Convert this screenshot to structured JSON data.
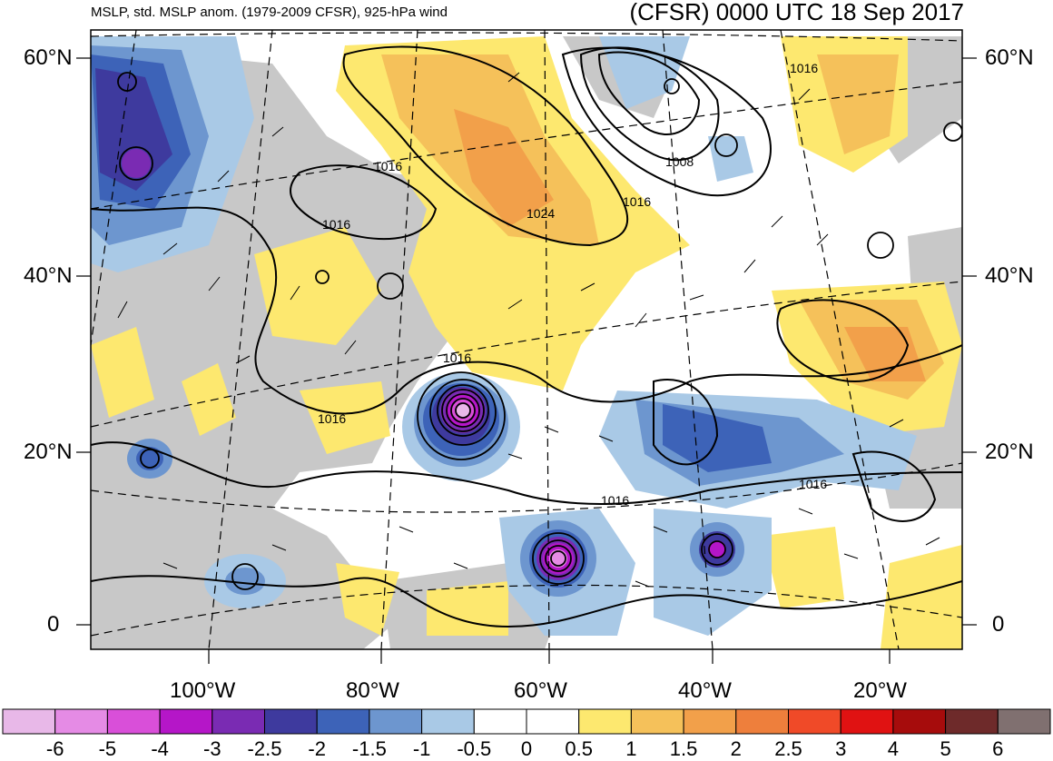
{
  "header": {
    "left_title": "MSLP, std. MSLP anom. (1979-2009 CFSR), 925-hPa wind",
    "right_title": "(CFSR) 0000 UTC 18 Sep 2017"
  },
  "axes": {
    "lat_labels": [
      "60°N",
      "40°N",
      "20°N",
      "0"
    ],
    "lon_labels": [
      "100°W",
      "80°W",
      "60°W",
      "40°W",
      "20°W"
    ]
  },
  "isobar_labels": [
    "1016",
    "1016",
    "1016",
    "1024",
    "1016",
    "1008",
    "1016",
    "1016",
    "1016",
    "1016"
  ],
  "colorbar": {
    "labels": [
      "-6",
      "-5",
      "-4",
      "-3",
      "-2.5",
      "-2",
      "-1.5",
      "-1",
      "-0.5",
      "0",
      "0.5",
      "1",
      "1.5",
      "2",
      "2.5",
      "3",
      "4",
      "5",
      "6"
    ],
    "colors": [
      "#e8b8e8",
      "#e58be5",
      "#d94fd9",
      "#b516c8",
      "#7a2bb3",
      "#3e3a9e",
      "#3d63b8",
      "#6d96cf",
      "#a9c9e6",
      "#ffffff",
      "#ffffff",
      "#fde86f",
      "#f5c15a",
      "#f2a04a",
      "#ee7f3c",
      "#f04a28",
      "#e01212",
      "#a60c0c",
      "#6e2a2a",
      "#807070"
    ]
  }
}
